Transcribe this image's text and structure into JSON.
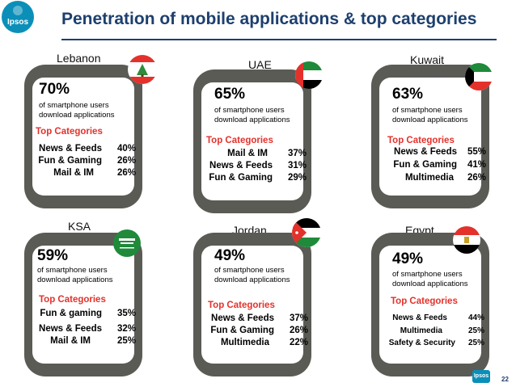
{
  "header": {
    "logo_text": "Ipsos",
    "title": "Penetration of mobile applications & top categories"
  },
  "footer": {
    "page_number": "22",
    "logo_text": "Ipsos"
  },
  "labels": {
    "top_categories": "Top Categories",
    "description": "of smartphone users download applications"
  },
  "cards": [
    {
      "country": "Lebanon",
      "percent": "70%",
      "flag": "lebanon-flag",
      "categories": [
        {
          "name": "News & Feeds",
          "value": "40%"
        },
        {
          "name": "Fun & Gaming",
          "value": "26%"
        },
        {
          "name": "Mail & IM",
          "value": "26%"
        }
      ]
    },
    {
      "country": "UAE",
      "percent": "65%",
      "flag": "uae-flag",
      "categories": [
        {
          "name": "Mail & IM",
          "value": "37%"
        },
        {
          "name": "News & Feeds",
          "value": "31%"
        },
        {
          "name": "Fun & Gaming",
          "value": "29%"
        }
      ]
    },
    {
      "country": "Kuwait",
      "percent": "63%",
      "flag": "kuwait-flag",
      "categories": [
        {
          "name": "News & Feeds",
          "value": "55%"
        },
        {
          "name": "Fun & Gaming",
          "value": "41%"
        },
        {
          "name": "Multimedia",
          "value": "26%"
        }
      ]
    },
    {
      "country": "KSA",
      "percent": "59%",
      "flag": "ksa-flag",
      "categories": [
        {
          "name": "Fun & gaming",
          "value": "35%"
        },
        {
          "name": "News & Feeds",
          "value": "32%"
        },
        {
          "name": "Mail & IM",
          "value": "25%"
        }
      ]
    },
    {
      "country": "Jordan",
      "percent": "49%",
      "flag": "jordan-flag",
      "categories": [
        {
          "name": "News & Feeds",
          "value": "37%"
        },
        {
          "name": "Fun & Gaming",
          "value": "26%"
        },
        {
          "name": "Multimedia",
          "value": "22%"
        }
      ]
    },
    {
      "country": "Egypt",
      "percent": "49%",
      "flag": "egypt-flag",
      "categories": [
        {
          "name": "News & Feeds",
          "value": "44%"
        },
        {
          "name": "Multimedia",
          "value": "25%"
        },
        {
          "name": "Safety & Security",
          "value": "25%"
        }
      ]
    }
  ]
}
